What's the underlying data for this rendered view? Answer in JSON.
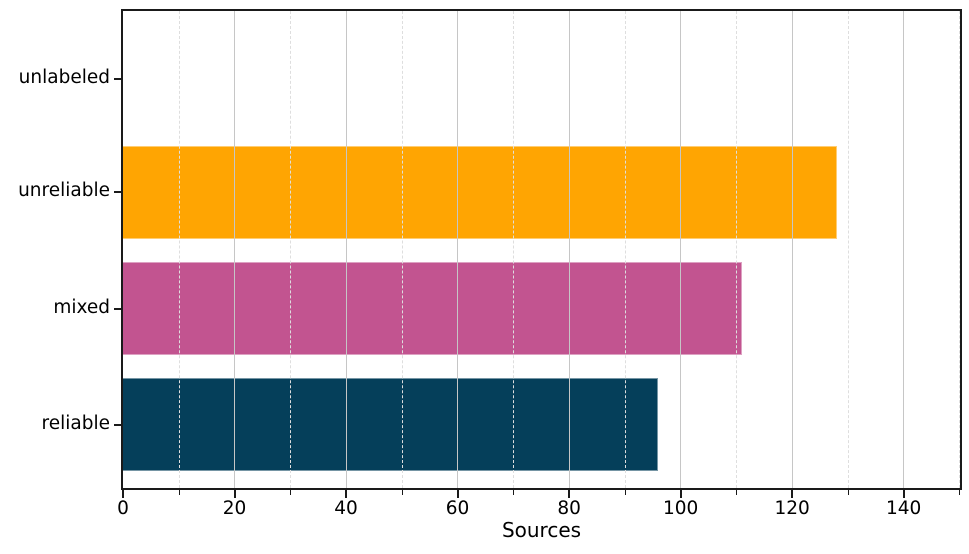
{
  "figure": {
    "background": "#ffffff",
    "spine_color": "#1a1a1a",
    "major_grid_color": "#c6c6c6",
    "minor_grid_color": "#dedede"
  },
  "chart_data": {
    "type": "bar",
    "orientation": "horizontal",
    "title": "",
    "xlabel": "Sources",
    "ylabel": "",
    "categories": [
      "unlabeled",
      "unreliable",
      "mixed",
      "reliable"
    ],
    "values": [
      0,
      128,
      111,
      96
    ],
    "bar_colors": [
      null,
      "#FFA502",
      "#C25490",
      "#053F5A"
    ],
    "xlim": [
      0,
      150.1
    ],
    "xticks_major": [
      0,
      20,
      40,
      60,
      80,
      100,
      120,
      140
    ],
    "xticks_minor": [
      10,
      30,
      50,
      70,
      90,
      110,
      130,
      150
    ],
    "grid": "vertical; major solid, minor dashed, drawn above bars",
    "legend": "none"
  }
}
